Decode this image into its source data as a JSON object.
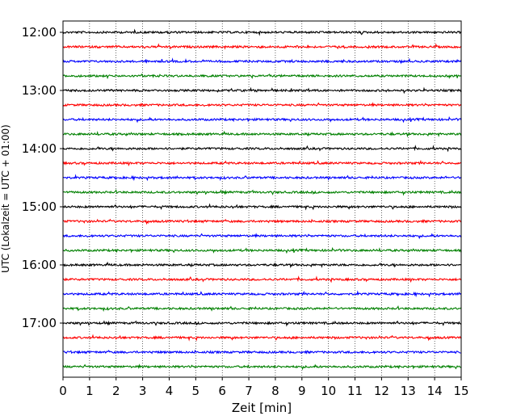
{
  "chart_data": {
    "type": "line",
    "title": "",
    "xlabel": "Zeit  [min]",
    "ylabel": "UTC (Lokalzeit = UTC + 01:00)",
    "xlim": [
      0,
      15
    ],
    "x_ticks": [
      "0",
      "1",
      "2",
      "3",
      "4",
      "5",
      "6",
      "7",
      "8",
      "9",
      "10",
      "11",
      "12",
      "13",
      "14",
      "15"
    ],
    "y_tick_labels": [
      "12:00",
      "13:00",
      "14:00",
      "15:00",
      "16:00",
      "17:00"
    ],
    "grid": "vertical dotted at each minute",
    "trace_interval_min": 15,
    "trace_color_cycle": [
      "#000000",
      "#ff0000",
      "#0000ff",
      "#008000"
    ],
    "traces": [
      {
        "start": "12:00"
      },
      {
        "start": "12:15"
      },
      {
        "start": "12:30"
      },
      {
        "start": "12:45"
      },
      {
        "start": "13:00"
      },
      {
        "start": "13:15"
      },
      {
        "start": "13:30"
      },
      {
        "start": "13:45"
      },
      {
        "start": "14:00"
      },
      {
        "start": "14:15"
      },
      {
        "start": "14:30"
      },
      {
        "start": "14:45"
      },
      {
        "start": "15:00"
      },
      {
        "start": "15:15"
      },
      {
        "start": "15:30"
      },
      {
        "start": "15:45"
      },
      {
        "start": "16:00"
      },
      {
        "start": "16:15"
      },
      {
        "start": "16:30"
      },
      {
        "start": "16:45"
      },
      {
        "start": "17:00"
      },
      {
        "start": "17:15"
      },
      {
        "start": "17:30"
      },
      {
        "start": "17:45"
      }
    ]
  }
}
